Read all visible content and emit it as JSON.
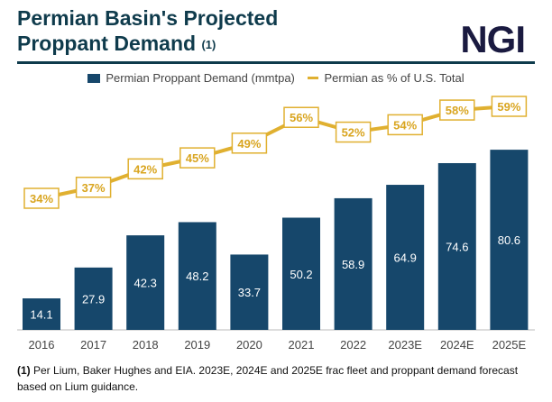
{
  "header": {
    "title_line1": "Permian Basin's Projected",
    "title_line2": "Proppant Demand",
    "title_sup": "(1)",
    "logo": "NGI"
  },
  "colors": {
    "bar": "#16476b",
    "line": "#e0b030",
    "title": "#0f3b4c"
  },
  "chart_data": {
    "type": "bar+line",
    "categories": [
      "2016",
      "2017",
      "2018",
      "2019",
      "2020",
      "2021",
      "2022",
      "2023E",
      "2024E",
      "2025E"
    ],
    "series": [
      {
        "name": "Permian Proppant Demand (mmtpa)",
        "type": "bar",
        "values": [
          14.1,
          27.9,
          42.3,
          48.2,
          33.7,
          50.2,
          58.9,
          64.9,
          74.6,
          80.6
        ],
        "labels": [
          "14.1",
          "27.9",
          "42.3",
          "48.2",
          "33.7",
          "50.2",
          "58.9",
          "64.9",
          "74.6",
          "80.6"
        ]
      },
      {
        "name": "Permian as % of U.S. Total",
        "type": "line",
        "values": [
          34,
          37,
          42,
          45,
          49,
          56,
          52,
          54,
          58,
          59
        ],
        "labels": [
          "34%",
          "37%",
          "42%",
          "45%",
          "49%",
          "56%",
          "52%",
          "54%",
          "58%",
          "59%"
        ]
      }
    ],
    "legend_placement": "top-center",
    "grid": false
  },
  "legend": {
    "bar": "Permian Proppant Demand (mmtpa)",
    "line": "Permian as % of U.S. Total"
  },
  "footnote": {
    "marker": "(1)",
    "text": " Per Lium, Baker Hughes and EIA. 2023E, 2024E and 2025E frac fleet and proppant demand forecast based on Lium guidance."
  }
}
